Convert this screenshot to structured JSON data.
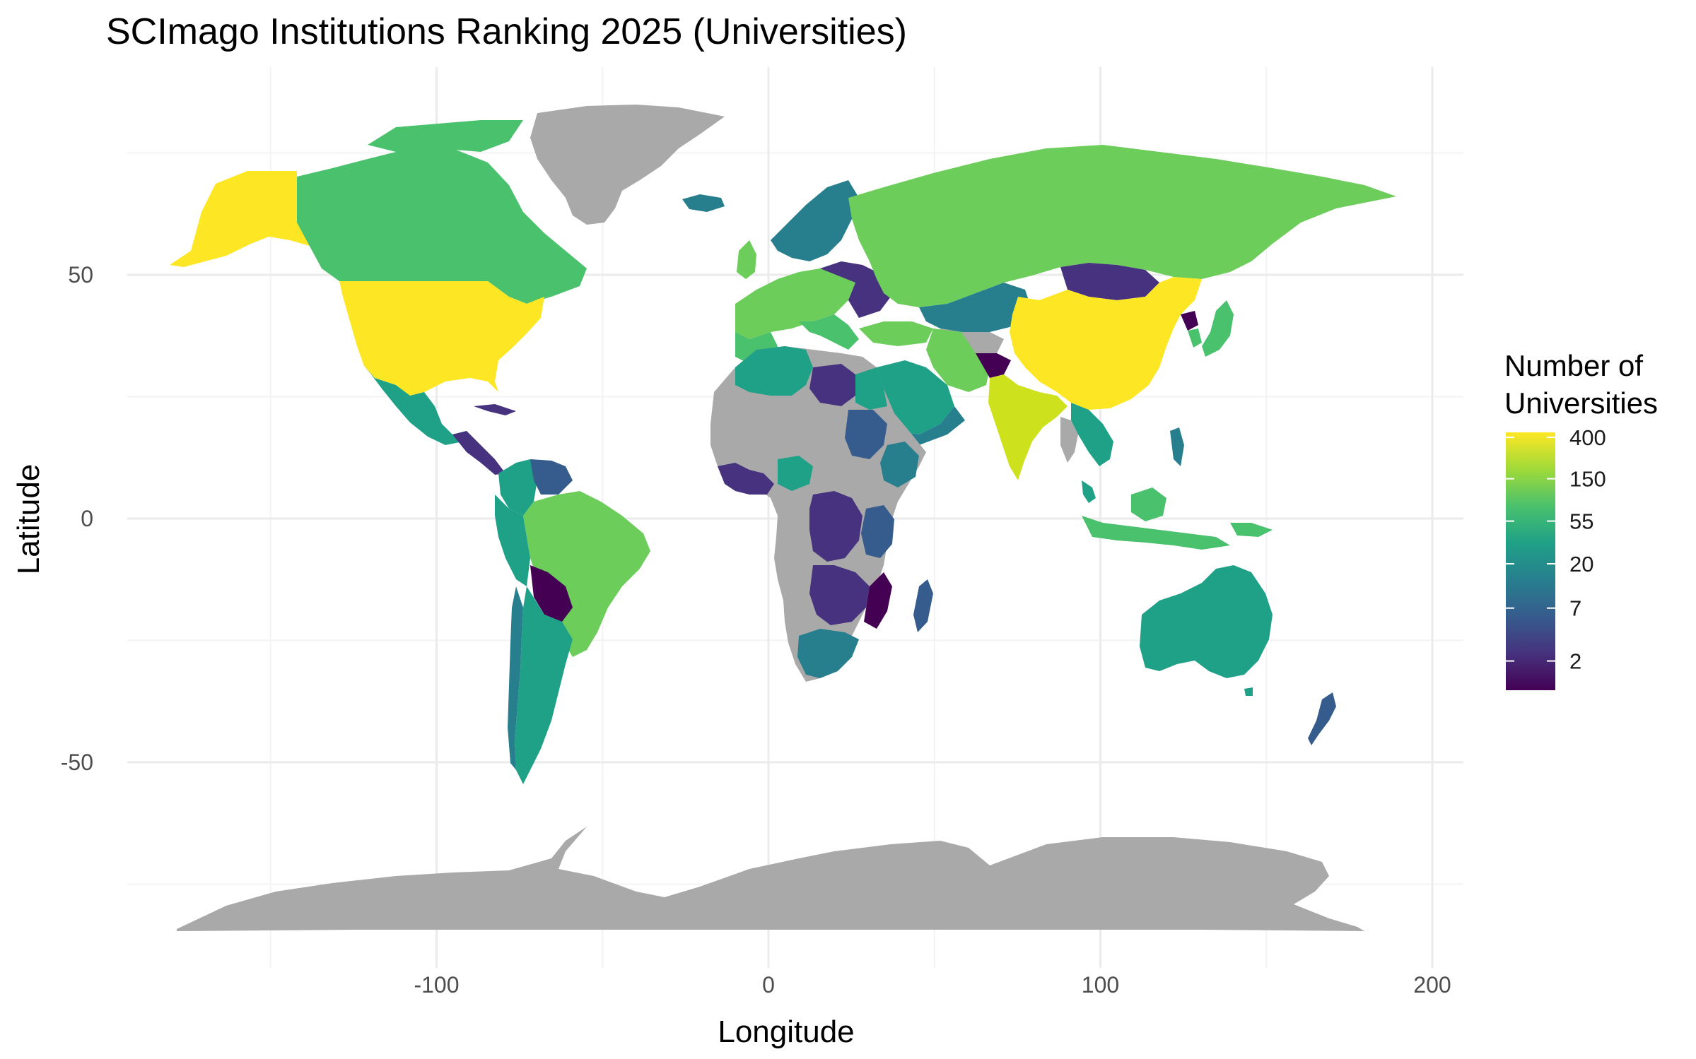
{
  "chart_data": {
    "type": "choropleth",
    "title": "SCImago Institutions Ranking 2025 (Universities)",
    "xlabel": "Longitude",
    "ylabel": "Latitude",
    "xlim": [
      -190,
      210
    ],
    "ylim": [
      -88,
      92
    ],
    "x_ticks": [
      -100,
      0,
      100,
      200
    ],
    "y_ticks": [
      -50,
      0,
      50
    ],
    "x_tick_labels": [
      "-100",
      "0",
      "100",
      "200"
    ],
    "y_tick_labels": [
      "-50",
      "0",
      "50"
    ],
    "grid": true,
    "legend": {
      "title_line1": "Number of",
      "title_line2": "Universities",
      "placement": "right",
      "scale": "log",
      "palette": "viridis",
      "range": [
        1,
        450
      ],
      "breaks": [
        400,
        150,
        55,
        20,
        7,
        2
      ],
      "break_labels": [
        "400",
        "150",
        "55",
        "20",
        "7",
        "2"
      ],
      "na_color": "#a9a9a9",
      "stops": [
        "#440154",
        "#46327e",
        "#365c8d",
        "#277f8e",
        "#1fa187",
        "#4ac16d",
        "#a0da39",
        "#fde725"
      ]
    }
  }
}
